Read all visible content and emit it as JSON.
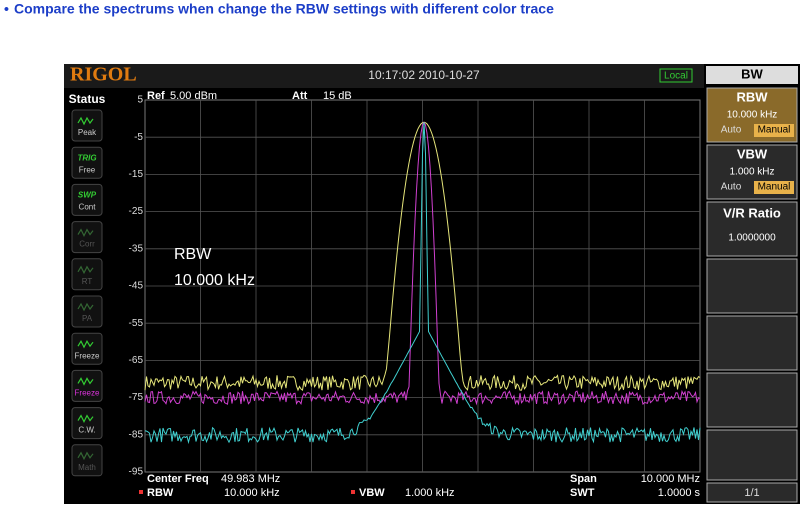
{
  "caption": "Compare the spectrums when change the RBW settings with different color trace",
  "header": {
    "brand": "RIGOL",
    "time": "10:17:02 2010-10-27",
    "mode": "Local"
  },
  "status": {
    "title": "Status",
    "items": [
      {
        "label": "Peak"
      },
      {
        "top": "TRIG",
        "label": "Free"
      },
      {
        "top": "SWP",
        "label": "Cont"
      },
      {
        "label": "Corr"
      },
      {
        "label": "RT"
      },
      {
        "label": "PA"
      },
      {
        "label": "Freeze"
      },
      {
        "label": "Freeze"
      },
      {
        "label": "C.W."
      },
      {
        "label": "Math"
      }
    ]
  },
  "plot": {
    "ref_label": "Ref",
    "ref": "5.00 dBm",
    "att_label": "Att",
    "att": "15 dB",
    "y_labels": [
      "5",
      "-5",
      "-15",
      "-25",
      "-35",
      "-45",
      "-55",
      "-65",
      "-75",
      "-85",
      "-95"
    ],
    "annotation": [
      "RBW",
      "10.000 kHz"
    ]
  },
  "footer": {
    "center_label": "Center Freq",
    "center": "49.983 MHz",
    "span_label": "Span",
    "span": "10.000 MHz",
    "rbw_label": "RBW",
    "rbw": "10.000 kHz",
    "vbw_label": "VBW",
    "vbw": "1.000 kHz",
    "swt_label": "SWT",
    "swt": "1.0000 s"
  },
  "menu": {
    "title": "BW",
    "rbw_label": "RBW",
    "rbw": "10.000 kHz",
    "vbw_label": "VBW",
    "vbw": "1.000 kHz",
    "auto": "Auto",
    "manual": "Manual",
    "ratio_label": "V/R Ratio",
    "ratio": "1.0000000",
    "page": "1/1"
  }
}
